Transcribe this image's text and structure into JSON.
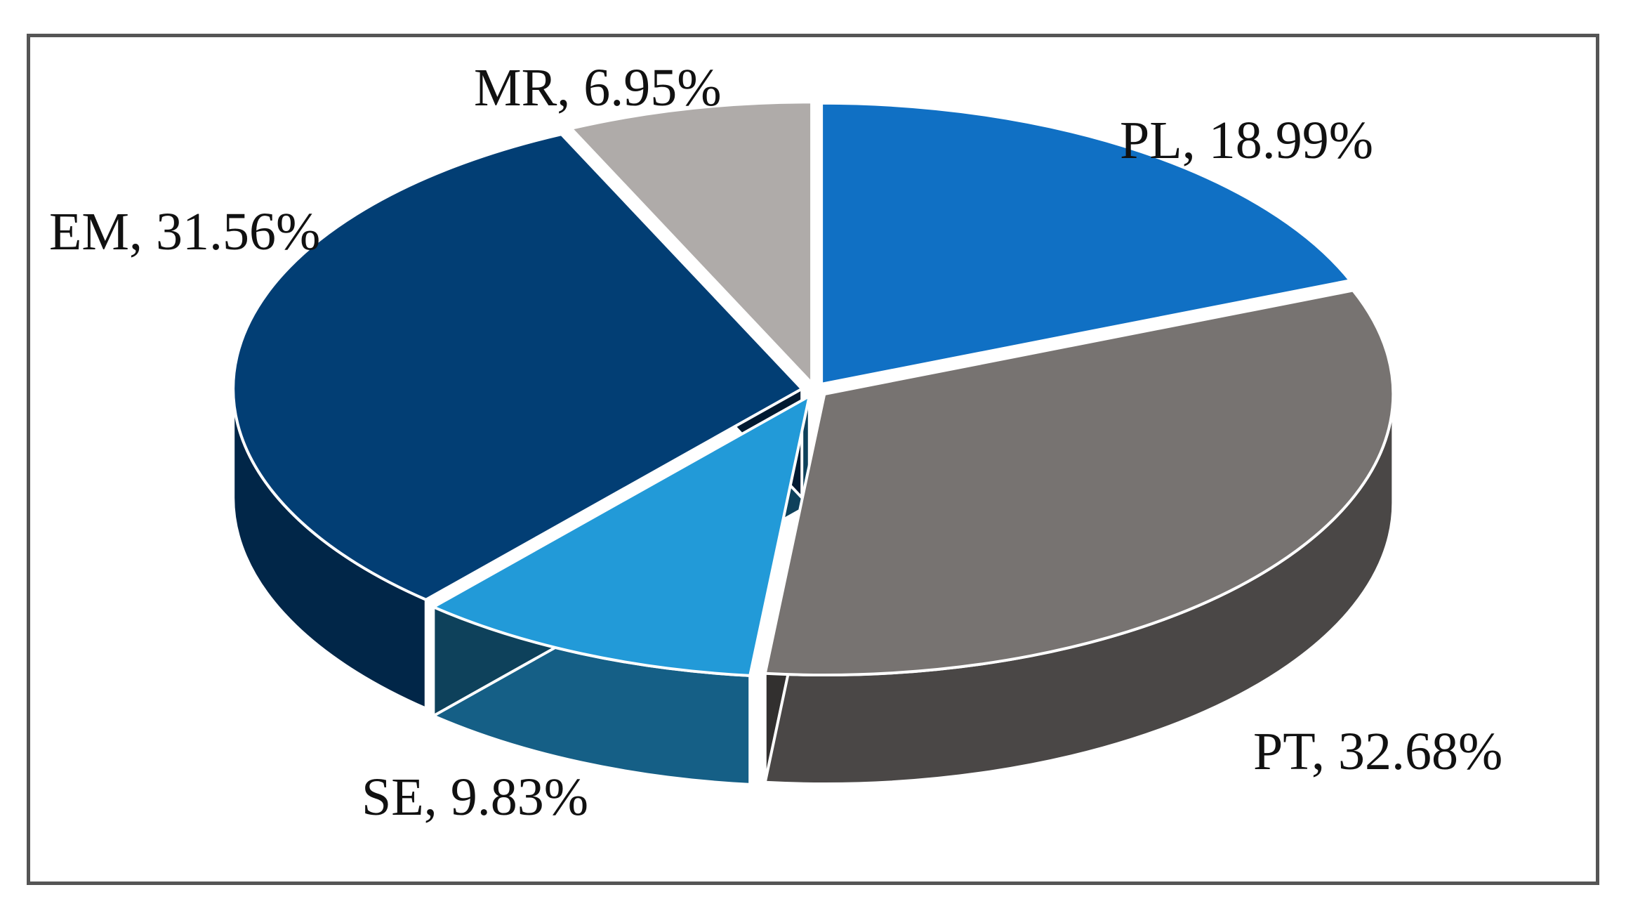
{
  "chart_data": {
    "type": "pie",
    "title": "",
    "style": "3d-exploded",
    "slices": [
      {
        "name": "PL",
        "value": 18.99,
        "label": "PL, 18.99%",
        "color": "#1070C4"
      },
      {
        "name": "PT",
        "value": 32.68,
        "label": "PT, 32.68%",
        "color": "#777371"
      },
      {
        "name": "SE",
        "value": 9.83,
        "label": "SE, 9.83%",
        "color": "#229AD8"
      },
      {
        "name": "EM",
        "value": 31.56,
        "label": "EM, 31.56%",
        "color": "#023E74"
      },
      {
        "name": "MR",
        "value": 6.95,
        "label": "MR, 6.95%",
        "color": "#AFABA9"
      }
    ]
  }
}
